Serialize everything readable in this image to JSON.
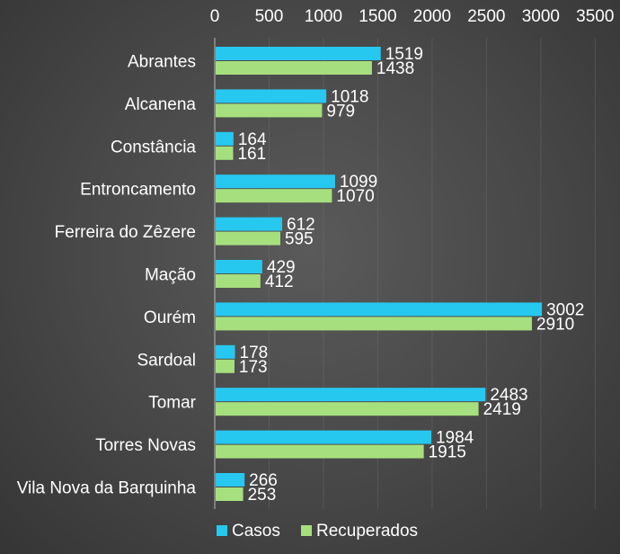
{
  "chart_data": {
    "type": "bar",
    "orientation": "horizontal",
    "title": "",
    "xlabel": "",
    "ylabel": "",
    "xlim": [
      0,
      3500
    ],
    "x_ticks": [
      0,
      500,
      1000,
      1500,
      2000,
      2500,
      3000,
      3500
    ],
    "x_tick_labels": [
      "0",
      "500",
      "1000",
      "1500",
      "2000",
      "2500",
      "3000",
      "3500"
    ],
    "axis_position": "top",
    "grid": true,
    "legend_position": "bottom",
    "categories": [
      "Abrantes",
      "Alcanena",
      "Constância",
      "Entroncamento",
      "Ferreira do Zêzere",
      "Mação",
      "Ourém",
      "Sardoal",
      "Tomar",
      "Torres Novas",
      "Vila Nova da Barquinha"
    ],
    "series": [
      {
        "name": "Casos",
        "color": "#27c8f0",
        "values": [
          1519,
          1018,
          164,
          1099,
          612,
          429,
          3002,
          178,
          2483,
          1984,
          266
        ]
      },
      {
        "name": "Recuperados",
        "color": "#a6e07e",
        "values": [
          1438,
          979,
          161,
          1070,
          595,
          412,
          2910,
          173,
          2419,
          1915,
          253
        ]
      }
    ]
  }
}
